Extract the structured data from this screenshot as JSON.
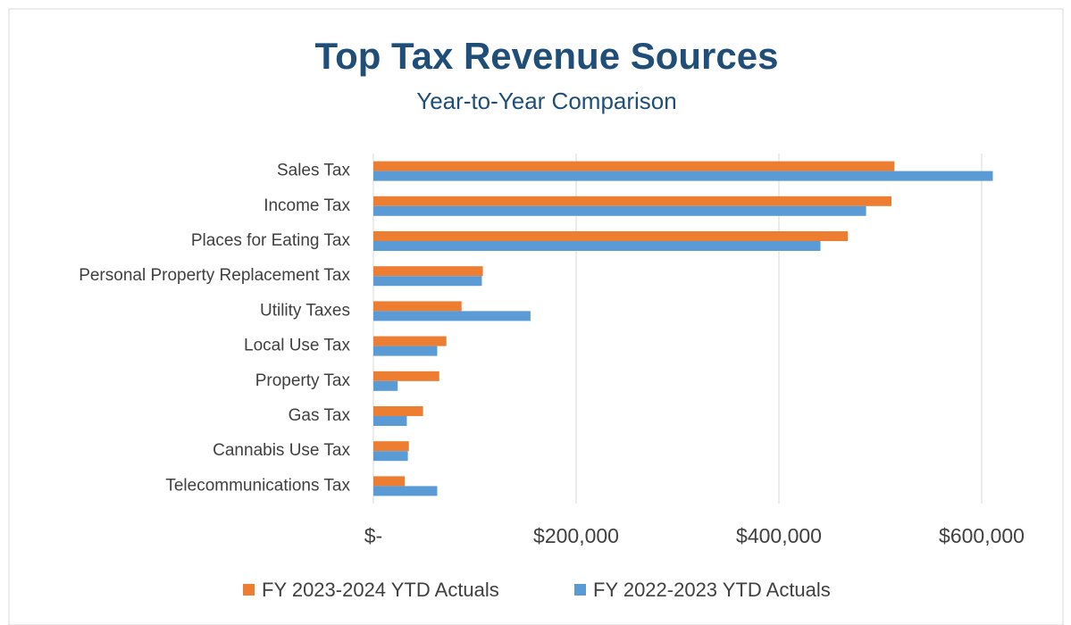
{
  "chart_data": {
    "type": "bar",
    "orientation": "horizontal",
    "title": "Top Tax Revenue Sources",
    "subtitle": "Year-to-Year Comparison",
    "categories": [
      "Sales Tax",
      "Income Tax",
      "Places for Eating Tax",
      "Personal Property Replacement Tax",
      "Utility Taxes",
      "Local Use Tax",
      "Property Tax",
      "Gas Tax",
      "Cannabis Use Tax",
      "Telecommunications Tax"
    ],
    "series": [
      {
        "name": "FY 2023-2024 YTD Actuals",
        "color": "#ed7d31",
        "values": [
          514000,
          511000,
          468000,
          108000,
          87000,
          72000,
          65000,
          49000,
          35000,
          31000
        ]
      },
      {
        "name": "FY 2022-2023 YTD Actuals",
        "color": "#5b9bd5",
        "values": [
          611000,
          486000,
          441000,
          107000,
          155000,
          63000,
          24000,
          33000,
          34000,
          63000
        ]
      }
    ],
    "xlim": [
      0,
      600000
    ],
    "xticks": [
      {
        "value": 0,
        "label": "$-"
      },
      {
        "value": 200000,
        "label": "$200,000"
      },
      {
        "value": 400000,
        "label": "$400,000"
      },
      {
        "value": 600000,
        "label": "$600,000"
      }
    ],
    "grid": true,
    "legend": "bottom"
  }
}
